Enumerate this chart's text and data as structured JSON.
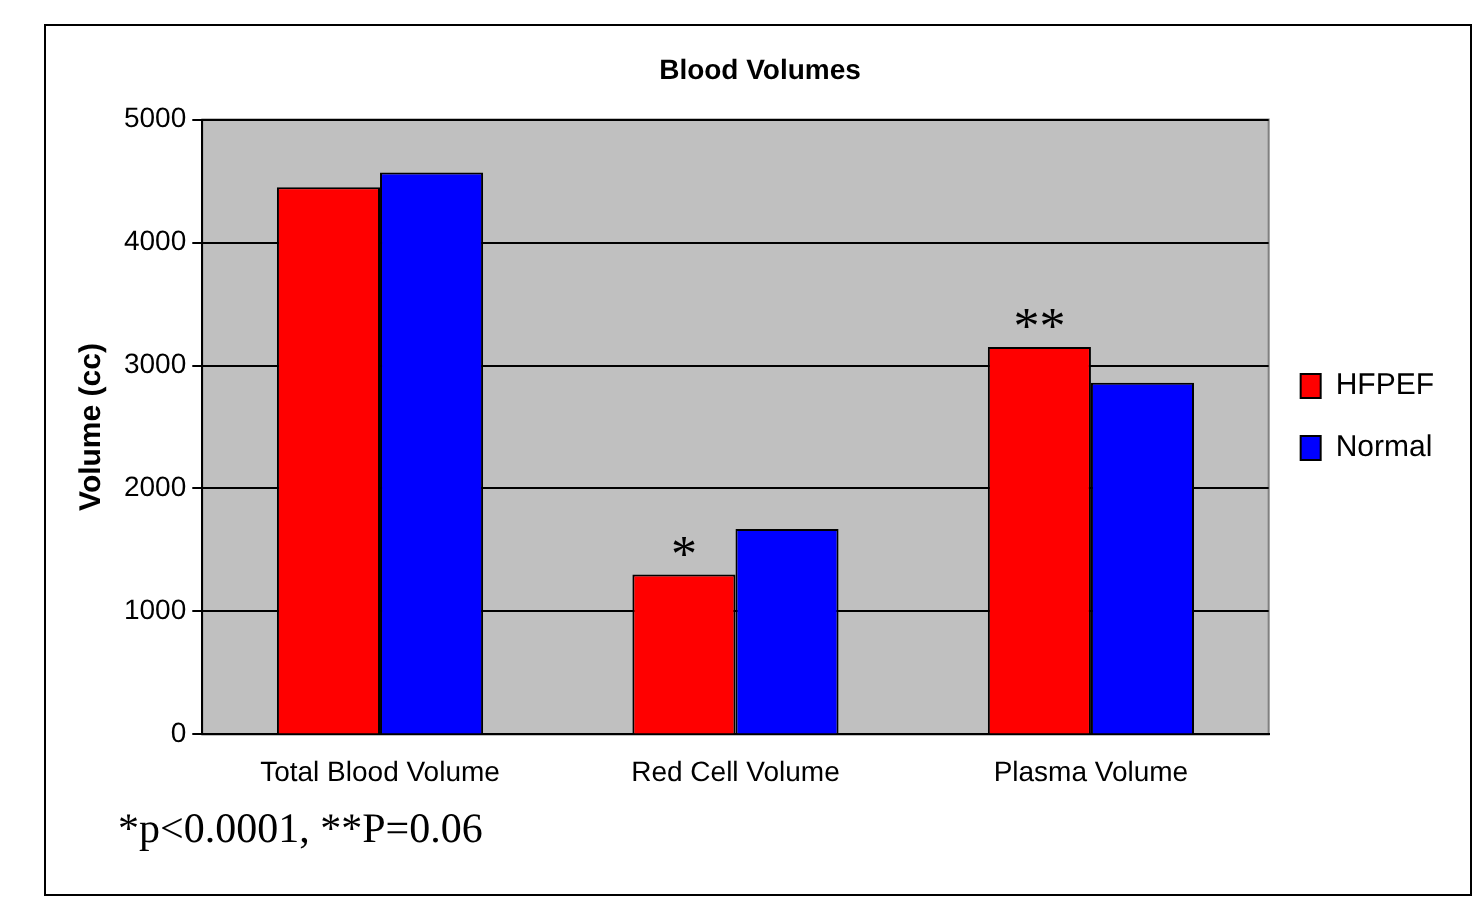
{
  "chart_data": {
    "type": "bar",
    "title": "Blood Volumes",
    "ylabel": "Volume (cc)",
    "categories": [
      "Total Blood Volume",
      "Red Cell Volume",
      "Plasma Volume"
    ],
    "series": [
      {
        "name": "HFPEF",
        "color": "#ff0000",
        "values": [
          4450,
          1300,
          3150
        ]
      },
      {
        "name": "Normal",
        "color": "#0000ff",
        "values": [
          4570,
          1670,
          2860
        ]
      }
    ],
    "ylim": [
      0,
      5000
    ],
    "yticks": [
      0,
      1000,
      2000,
      3000,
      4000,
      5000
    ],
    "grid": "y",
    "legend": "right",
    "annotations": [
      {
        "text": "*",
        "x": "Red Cell Volume",
        "y": 1300
      },
      {
        "text": "**",
        "x": "Plasma Volume",
        "y": 3150
      },
      "*p<0.0001, **P=0.06"
    ]
  }
}
